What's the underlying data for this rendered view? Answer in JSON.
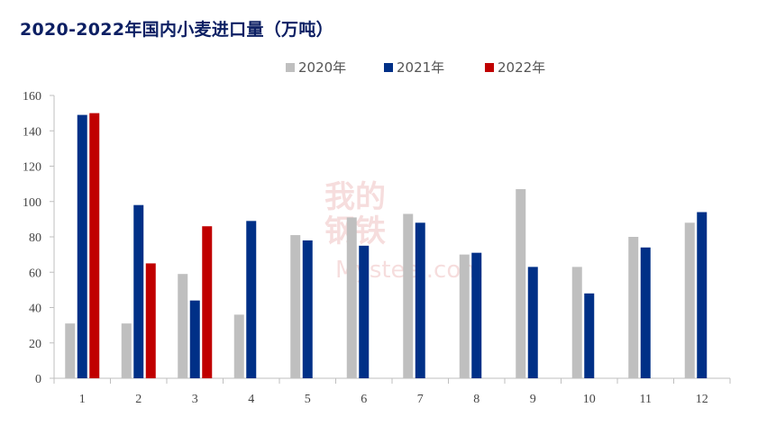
{
  "colors": {
    "s2020": "#bfbfbf",
    "s2021": "#003087",
    "s2022": "#c00000",
    "title": "#0c1f63",
    "axis": "#bfbfbf"
  },
  "watermark": {
    "line1": "我的",
    "line2": "钢铁",
    "line3": "Mysteel.com"
  },
  "chart_data": {
    "type": "bar",
    "title": "2020-2022年国内小麦进口量（万吨）",
    "xlabel": "",
    "ylabel": "",
    "ylim": [
      0,
      160
    ],
    "yticks": [
      "0",
      "20",
      "40",
      "60",
      "80",
      "100",
      "120",
      "140",
      "160"
    ],
    "grid": false,
    "legend_position": "top-center",
    "categories": [
      "1",
      "2",
      "3",
      "4",
      "5",
      "6",
      "7",
      "8",
      "9",
      "10",
      "11",
      "12"
    ],
    "series": [
      {
        "name": "2020年",
        "color": "#bfbfbf",
        "values": [
          31,
          31,
          59,
          36,
          81,
          91,
          93,
          70,
          107,
          63,
          80,
          88
        ]
      },
      {
        "name": "2021年",
        "color": "#003087",
        "values": [
          149,
          98,
          44,
          89,
          78,
          75,
          88,
          71,
          63,
          48,
          74,
          94
        ]
      },
      {
        "name": "2022年",
        "color": "#c00000",
        "values": [
          150,
          65,
          86,
          null,
          null,
          null,
          null,
          null,
          null,
          null,
          null,
          null
        ]
      }
    ]
  }
}
